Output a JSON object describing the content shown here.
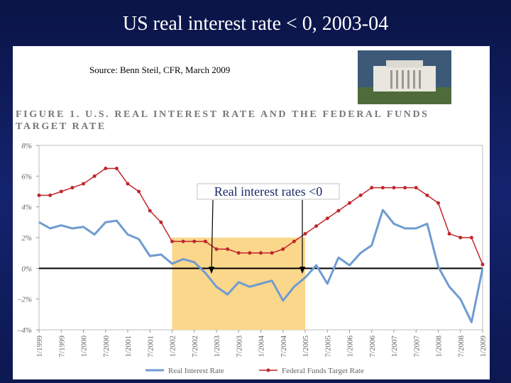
{
  "slide": {
    "title": "US real interest rate < 0,  2003-04",
    "source": "Source: Benn Steil, CFR, March 2009"
  },
  "chart_data": {
    "type": "line",
    "title": "FIGURE 1.  U.S. REAL INTEREST RATE AND THE FEDERAL FUNDS TARGET RATE",
    "annotation": "Real interest rates <0",
    "highlight_x": [
      2002.0,
      2005.0
    ],
    "x": [
      1999.0,
      1999.25,
      1999.5,
      1999.75,
      2000.0,
      2000.25,
      2000.5,
      2000.75,
      2001.0,
      2001.25,
      2001.5,
      2001.75,
      2002.0,
      2002.25,
      2002.5,
      2002.75,
      2003.0,
      2003.25,
      2003.5,
      2003.75,
      2004.0,
      2004.25,
      2004.5,
      2004.75,
      2005.0,
      2005.25,
      2005.5,
      2005.75,
      2006.0,
      2006.25,
      2006.5,
      2006.75,
      2007.0,
      2007.25,
      2007.5,
      2007.75,
      2008.0,
      2008.25,
      2008.5,
      2008.75,
      2009.0
    ],
    "series": [
      {
        "name": "Real Interest Rate",
        "color": "#6f9bd1",
        "values": [
          3.0,
          2.6,
          2.8,
          2.6,
          2.7,
          2.2,
          3.0,
          3.1,
          2.2,
          1.9,
          0.8,
          0.9,
          0.3,
          0.6,
          0.4,
          -0.3,
          -1.2,
          -1.7,
          -0.9,
          -1.2,
          -1.0,
          -0.8,
          -2.1,
          -1.2,
          -0.6,
          0.2,
          -1.0,
          0.7,
          0.2,
          1.0,
          1.5,
          3.8,
          2.9,
          2.6,
          2.6,
          2.9,
          0.1,
          -1.2,
          -2.0,
          -3.5,
          0.0
        ]
      },
      {
        "name": "Federal Funds Target Rate",
        "color": "#c0262c",
        "values": [
          4.75,
          4.75,
          5.0,
          5.25,
          5.5,
          6.0,
          6.5,
          6.5,
          5.5,
          5.0,
          3.75,
          3.0,
          1.75,
          1.75,
          1.75,
          1.75,
          1.25,
          1.25,
          1.0,
          1.0,
          1.0,
          1.0,
          1.25,
          1.75,
          2.25,
          2.75,
          3.25,
          3.75,
          4.25,
          4.75,
          5.25,
          5.25,
          5.25,
          5.25,
          5.25,
          4.75,
          4.25,
          2.25,
          2.0,
          2.0,
          0.25
        ]
      }
    ],
    "xlim": [
      1999.0,
      2009.0
    ],
    "xticks": [
      {
        "value": 1999.0,
        "label": "1/1999"
      },
      {
        "value": 1999.5,
        "label": "7/1999"
      },
      {
        "value": 2000.0,
        "label": "1/2000"
      },
      {
        "value": 2000.5,
        "label": "7/2000"
      },
      {
        "value": 2001.0,
        "label": "1/2001"
      },
      {
        "value": 2001.5,
        "label": "7/2001"
      },
      {
        "value": 2002.0,
        "label": "1/2002"
      },
      {
        "value": 2002.5,
        "label": "7/2002"
      },
      {
        "value": 2003.0,
        "label": "1/2003"
      },
      {
        "value": 2003.5,
        "label": "7/2003"
      },
      {
        "value": 2004.0,
        "label": "1/2004"
      },
      {
        "value": 2004.5,
        "label": "7/2004"
      },
      {
        "value": 2005.0,
        "label": "1/2005"
      },
      {
        "value": 2005.5,
        "label": "7/2005"
      },
      {
        "value": 2006.0,
        "label": "1/2006"
      },
      {
        "value": 2006.5,
        "label": "7/2006"
      },
      {
        "value": 2007.0,
        "label": "1/2007"
      },
      {
        "value": 2007.5,
        "label": "7/2007"
      },
      {
        "value": 2008.0,
        "label": "1/2008"
      },
      {
        "value": 2008.5,
        "label": "7/2008"
      },
      {
        "value": 2009.0,
        "label": "1/2009"
      }
    ],
    "ylim": [
      -4,
      8
    ],
    "yticks": [
      {
        "value": 8,
        "label": "8%"
      },
      {
        "value": 6,
        "label": "6%"
      },
      {
        "value": 4,
        "label": "4%"
      },
      {
        "value": 2,
        "label": "2%"
      },
      {
        "value": 0,
        "label": "0%"
      },
      {
        "value": -2,
        "label": "–2%"
      },
      {
        "value": -4,
        "label": "–4%"
      }
    ]
  }
}
